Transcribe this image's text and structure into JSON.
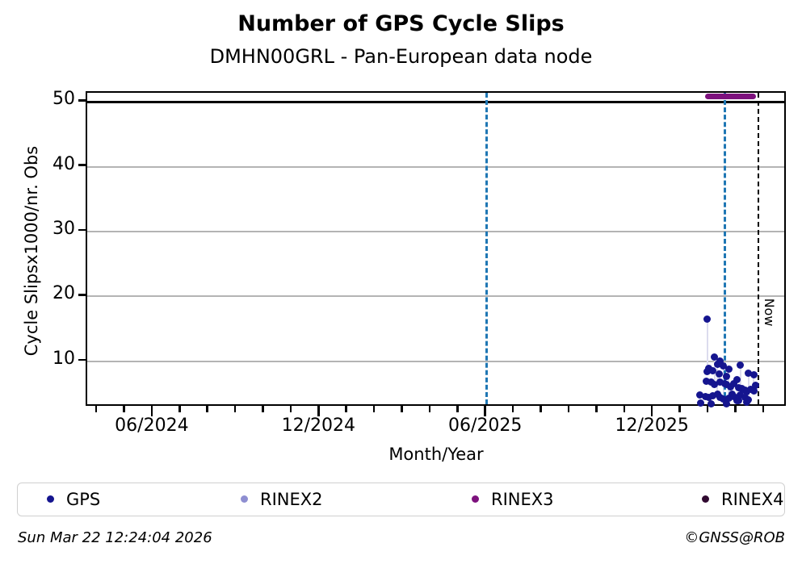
{
  "title": "Number of GPS Cycle Slips",
  "subtitle": "DMHN00GRL - Pan-European data node",
  "footer": {
    "timestamp": "Sun Mar 22 12:24:04 2026",
    "copyright": "©GNSS@ROB"
  },
  "legend": {
    "items": [
      {
        "label": "GPS",
        "color": "#15158f"
      },
      {
        "label": "RINEX2",
        "color": "#8e8ed1"
      },
      {
        "label": "RINEX3",
        "color": "#7d117d"
      },
      {
        "label": "RINEX4",
        "color": "#300a30"
      }
    ]
  },
  "colors": {
    "gps": "#15158f",
    "rinex3": "#7d117d",
    "grid": "#b4b4b4",
    "stem": "#dcdcee",
    "vline_blue": "#1f77b4",
    "vline_black": "#000000"
  },
  "chart_data": {
    "type": "scatter",
    "title": "Number of GPS Cycle Slips",
    "subtitle": "DMHN00GRL - Pan-European data node",
    "xlabel": "Month/Year",
    "ylabel": "Cycle Slipsx1000/nr. Obs",
    "x_unit": "months_since_2024_06",
    "xlim": [
      -2.38,
      22.82
    ],
    "ylim": [
      2.9,
      51.4
    ],
    "grid": true,
    "yticks": [
      10,
      20,
      30,
      40,
      50
    ],
    "ytick_dark_value": 50,
    "xticks_minor_months": [
      -2,
      -1,
      0,
      1,
      2,
      3,
      4,
      5,
      6,
      7,
      8,
      9,
      10,
      11,
      12,
      13,
      14,
      15,
      16,
      17,
      18,
      19,
      20,
      21,
      22
    ],
    "xticks_major": [
      {
        "m": 0,
        "label": "06/2024"
      },
      {
        "m": 6,
        "label": "12/2024"
      },
      {
        "m": 12,
        "label": "06/2025"
      },
      {
        "m": 18,
        "label": "12/2025"
      }
    ],
    "hline_dark": {
      "v": 50
    },
    "vlines": [
      {
        "m": 12.0,
        "color": "blue",
        "note": "06/2025"
      },
      {
        "m": 20.58,
        "color": "blue",
        "note": "~2026-02-20"
      },
      {
        "m": 21.8,
        "color": "black",
        "label": "Now",
        "note": "current date"
      }
    ],
    "now_label": "Now",
    "series": [
      {
        "name": "GPS",
        "marker_color": "#15158f",
        "points_mv": [
          [
            19.68,
            4.8
          ],
          [
            19.7,
            3.6
          ],
          [
            19.88,
            4.6
          ],
          [
            19.9,
            7.0
          ],
          [
            19.94,
            16.5
          ],
          [
            19.94,
            8.4
          ],
          [
            20.0,
            8.9
          ],
          [
            20.0,
            4.5
          ],
          [
            20.06,
            6.8
          ],
          [
            20.06,
            3.4
          ],
          [
            20.12,
            8.6
          ],
          [
            20.12,
            4.7
          ],
          [
            20.2,
            10.7
          ],
          [
            20.2,
            6.5
          ],
          [
            20.3,
            9.5
          ],
          [
            20.3,
            4.9
          ],
          [
            20.35,
            8.1
          ],
          [
            20.4,
            10.1
          ],
          [
            20.4,
            6.8
          ],
          [
            20.4,
            4.4
          ],
          [
            20.52,
            9.3
          ],
          [
            20.52,
            4.2
          ],
          [
            20.58,
            6.6
          ],
          [
            20.64,
            7.7
          ],
          [
            20.64,
            6.4
          ],
          [
            20.64,
            3.5
          ],
          [
            20.7,
            8.8
          ],
          [
            20.7,
            4.3
          ],
          [
            20.76,
            6.1
          ],
          [
            20.84,
            4.9
          ],
          [
            20.9,
            6.6
          ],
          [
            20.9,
            4.6
          ],
          [
            20.99,
            7.2
          ],
          [
            21.0,
            4.0
          ],
          [
            21.05,
            6.0
          ],
          [
            21.05,
            3.9
          ],
          [
            21.13,
            9.4
          ],
          [
            21.13,
            4.8
          ],
          [
            21.19,
            5.8
          ],
          [
            21.28,
            5.6
          ],
          [
            21.28,
            4.4
          ],
          [
            21.34,
            5.3
          ],
          [
            21.34,
            3.7
          ],
          [
            21.42,
            8.2
          ],
          [
            21.42,
            4.1
          ],
          [
            21.5,
            5.7
          ],
          [
            21.6,
            7.9
          ],
          [
            21.6,
            5.5
          ],
          [
            21.66,
            6.3
          ]
        ],
        "stems_m_v1_v2": [
          [
            19.94,
            16.5,
            8.4
          ],
          [
            20.2,
            10.7,
            6.5
          ],
          [
            20.3,
            9.5,
            4.9
          ],
          [
            20.52,
            9.3,
            4.2
          ],
          [
            20.7,
            8.8,
            4.3
          ],
          [
            21.13,
            9.4,
            4.8
          ],
          [
            21.42,
            8.2,
            4.1
          ],
          [
            21.6,
            7.9,
            5.5
          ]
        ]
      },
      {
        "name": "RINEX3",
        "marker_color": "#7d117d",
        "segment": {
          "m1": 19.85,
          "m2": 21.68,
          "v": 50.8
        }
      }
    ],
    "legend_entries": [
      "GPS",
      "RINEX2",
      "RINEX3",
      "RINEX4"
    ],
    "legend_position": "bottom"
  }
}
